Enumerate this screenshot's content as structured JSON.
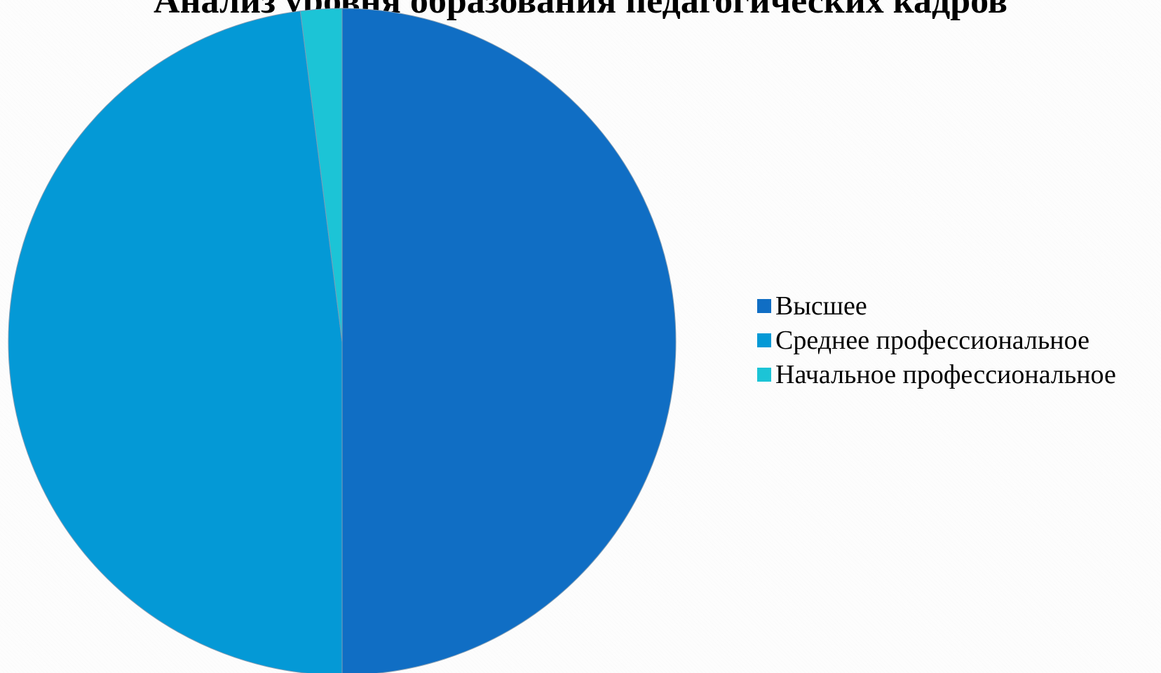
{
  "chart_data": {
    "type": "pie",
    "title": "Анализ уровня образования педагогических кадров",
    "categories": [
      "Высшее",
      "Среднее профессиональное",
      "Начальное профессиональное"
    ],
    "values": [
      50,
      48,
      2
    ],
    "colors": [
      "#106EC4",
      "#0499D6",
      "#1CC4D6"
    ],
    "legend_position": "right"
  }
}
